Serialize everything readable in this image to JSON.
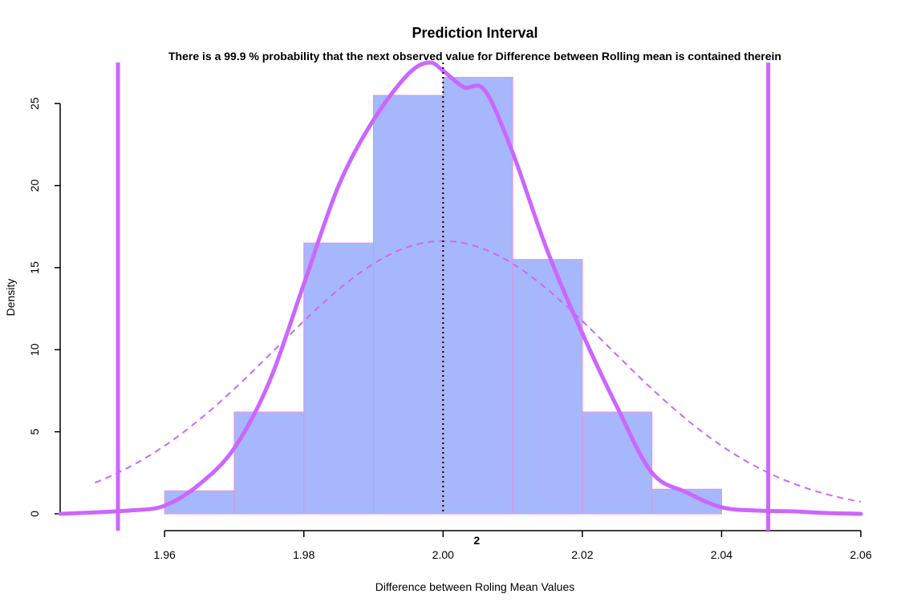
{
  "chart_data": {
    "type": "bar",
    "title": "Prediction Interval",
    "subtitle": "There is a 99.9 % probability that the next observed value for Difference between Rolling mean  is contained therein",
    "xlabel": "Difference between Roling Mean Values",
    "ylabel": "Density",
    "xlim": [
      1.945,
      2.06
    ],
    "ylim": [
      0,
      27.5
    ],
    "x_ticks": [
      "1.96",
      "1.98",
      "2.00",
      "2.02",
      "2.04",
      "2.06"
    ],
    "y_ticks": [
      "0",
      "5",
      "10",
      "15",
      "20",
      "25"
    ],
    "histogram": {
      "bin_edges": [
        1.96,
        1.97,
        1.98,
        1.99,
        2.0,
        2.01,
        2.02,
        2.03,
        2.04
      ],
      "density": [
        1.4,
        6.2,
        16.5,
        25.5,
        26.6,
        15.5,
        6.2,
        1.5
      ],
      "fill_color": "#a6b8fb",
      "border_color": "#f08bdb"
    },
    "kde_curve": {
      "color": "#cc66ff",
      "x": [
        1.945,
        1.955,
        1.96,
        1.965,
        1.97,
        1.975,
        1.98,
        1.985,
        1.99,
        1.995,
        1.998,
        2.0,
        2.003,
        2.006,
        2.01,
        2.015,
        2.02,
        2.025,
        2.03,
        2.035,
        2.04,
        2.045,
        2.05,
        2.055,
        2.06
      ],
      "y": [
        0.0,
        0.2,
        0.5,
        1.8,
        4.0,
        8.0,
        14.0,
        20.0,
        24.0,
        26.8,
        27.5,
        27.0,
        26.0,
        25.8,
        22.0,
        16.0,
        11.0,
        6.5,
        2.5,
        1.3,
        0.4,
        0.2,
        0.15,
        0.05,
        0.0
      ]
    },
    "normal_curve": {
      "color": "#cc66ff",
      "style": "dashed",
      "mean": 2.0,
      "sd": 0.024,
      "x_range": [
        1.95,
        2.06
      ]
    },
    "mean_line": {
      "value": 2.0,
      "label": "2",
      "style": "dotted"
    },
    "interval_lines": {
      "lower": 1.9533,
      "upper": 2.0467,
      "color": "#cc66ff"
    },
    "grid": false,
    "legend": "none"
  }
}
